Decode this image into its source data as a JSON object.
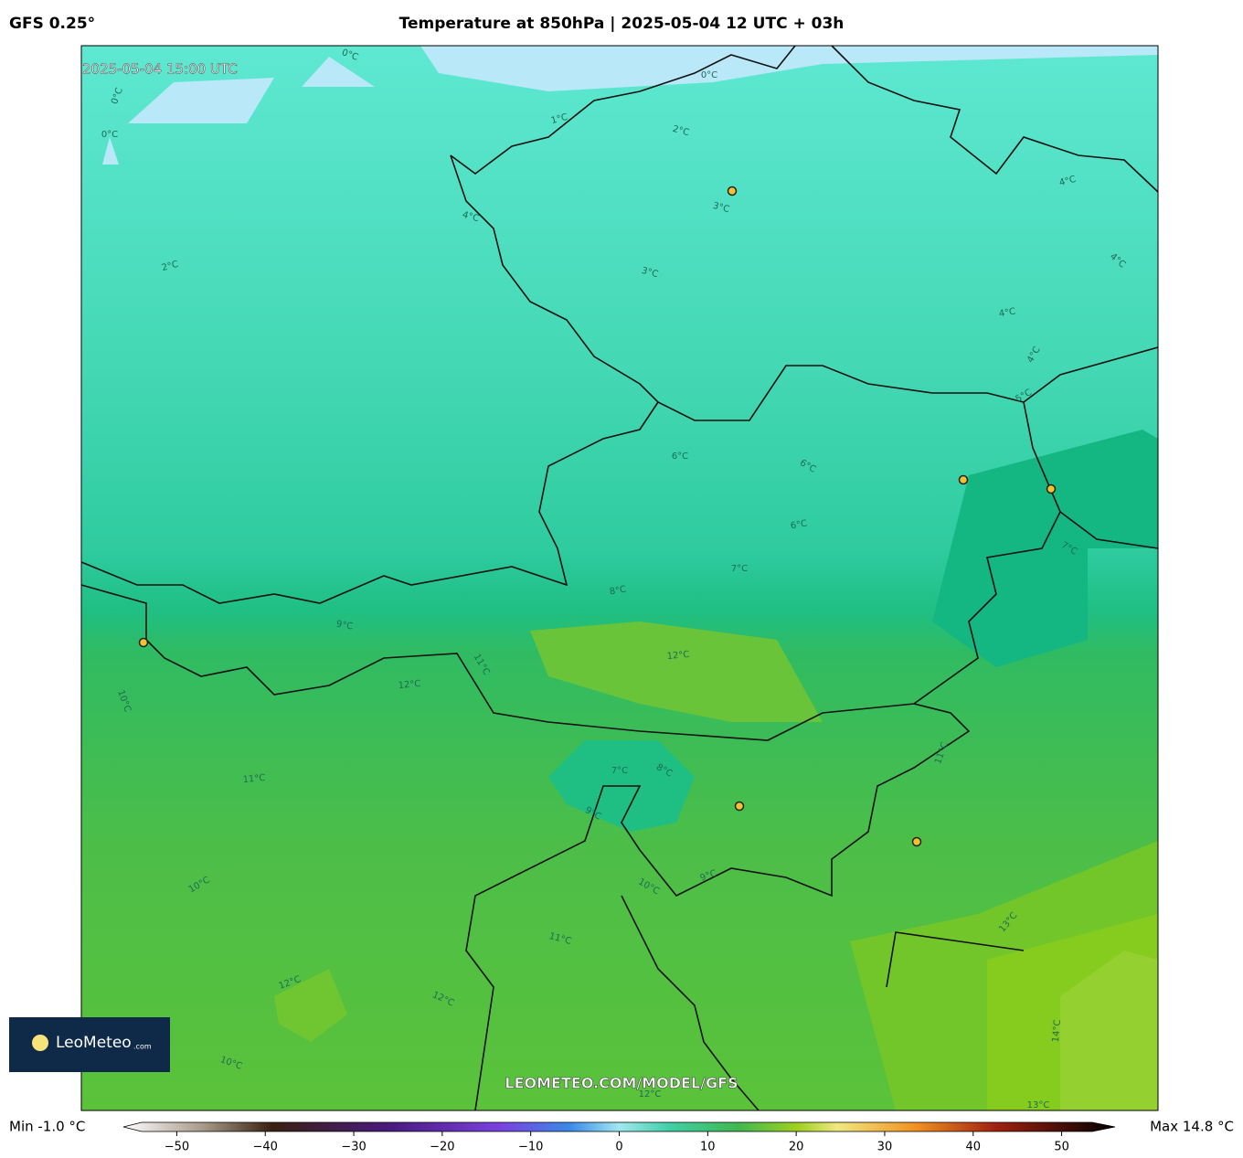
{
  "header": {
    "model": "GFS 0.25°",
    "title": "Temperature at 850hPa | 2025-05-04 12 UTC + 03h"
  },
  "map": {
    "valid_time": "2025-05-04 15:00 UTC",
    "watermark": "LEOMETEO.COM/MODEL/GFS",
    "contour_labels": [
      "0°C",
      "0°C",
      "0°C",
      "0°C",
      "1°C",
      "2°C",
      "3°C",
      "4°C",
      "2°C",
      "3°C",
      "4°C",
      "4°C",
      "4°C",
      "4°C",
      "5°C",
      "6°C",
      "6°C",
      "6°C",
      "7°C",
      "7°C",
      "8°C",
      "9°C",
      "12°C",
      "11°C",
      "12°C",
      "10°C",
      "11°C",
      "7°C",
      "8°C",
      "11°C",
      "9°C",
      "9°C",
      "10°C",
      "10°C",
      "13°C",
      "11°C",
      "12°C",
      "12°C",
      "14°C",
      "10°C",
      "12°C",
      "13°C"
    ]
  },
  "logo": {
    "name": "LeoMeteo",
    "suffix": ".com"
  },
  "colorbar": {
    "min_label": "Min -1.0 °C",
    "max_label": "Max 14.8 °C",
    "lim": [
      -55,
      55
    ],
    "ticks": [
      {
        "value": -50,
        "label": "−50"
      },
      {
        "value": -40,
        "label": "−40"
      },
      {
        "value": -30,
        "label": "−30"
      },
      {
        "value": -20,
        "label": "−20"
      },
      {
        "value": -10,
        "label": "−10"
      },
      0,
      10,
      20,
      30,
      40,
      50
    ]
  }
}
